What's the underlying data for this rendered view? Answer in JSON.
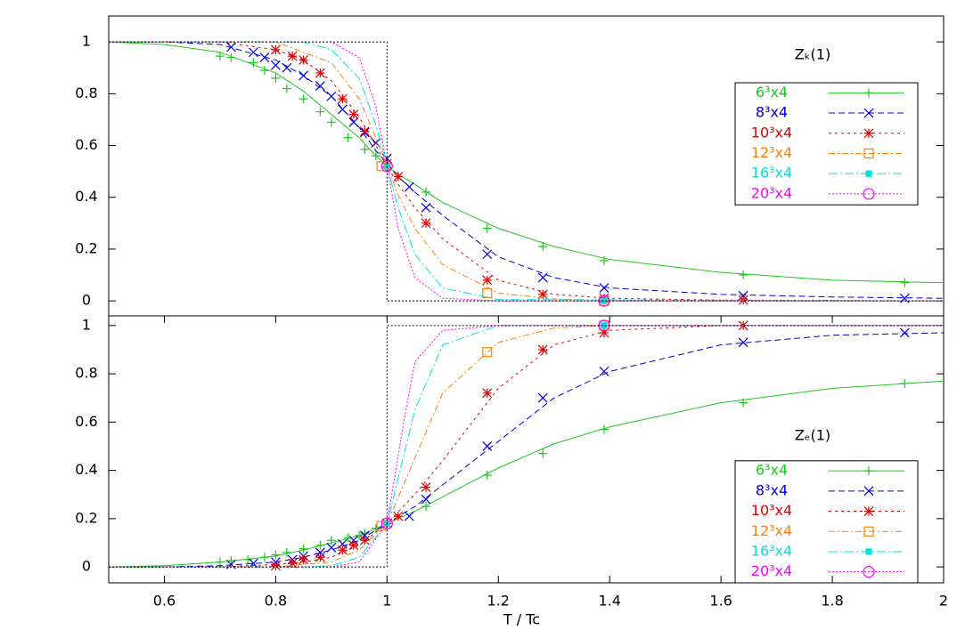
{
  "chart_data": [
    {
      "type": "line",
      "label": "Zₖ(1)",
      "xlim": [
        0.5,
        2.0
      ],
      "ylim": [
        -0.058,
        1.1
      ],
      "yticks": [
        0,
        0.2,
        0.4,
        0.6,
        0.8,
        1
      ],
      "legend": "upper right",
      "series": [
        {
          "name": "6³x4",
          "color": "#1ec81e",
          "dash": "solid",
          "marker": "plus",
          "x": [
            0.5,
            0.6,
            0.7,
            0.8,
            0.85,
            0.9,
            0.95,
            0.98,
            1.0,
            1.02,
            1.05,
            1.1,
            1.2,
            1.3,
            1.4,
            1.6,
            1.8,
            2.0
          ],
          "values": [
            1.0,
            0.99,
            0.96,
            0.88,
            0.81,
            0.72,
            0.63,
            0.56,
            0.52,
            0.49,
            0.45,
            0.38,
            0.28,
            0.21,
            0.16,
            0.11,
            0.08,
            0.07
          ],
          "points": {
            "x": [
              0.7,
              0.72,
              0.76,
              0.78,
              0.8,
              0.82,
              0.85,
              0.88,
              0.9,
              0.93,
              0.96,
              0.98,
              1.07,
              1.18,
              1.28,
              1.39,
              1.64,
              1.93
            ],
            "values": [
              0.945,
              0.94,
              0.92,
              0.89,
              0.86,
              0.82,
              0.78,
              0.73,
              0.69,
              0.63,
              0.585,
              0.56,
              0.42,
              0.28,
              0.21,
              0.155,
              0.1,
              0.07
            ]
          }
        },
        {
          "name": "8³x4",
          "color": "#0000e0",
          "dash": "dashed",
          "marker": "cross",
          "x": [
            0.5,
            0.6,
            0.7,
            0.8,
            0.85,
            0.9,
            0.95,
            0.98,
            1.0,
            1.02,
            1.05,
            1.1,
            1.2,
            1.3,
            1.4,
            1.6,
            1.8,
            2.0
          ],
          "values": [
            1.0,
            1.0,
            0.99,
            0.93,
            0.87,
            0.79,
            0.67,
            0.58,
            0.53,
            0.48,
            0.42,
            0.33,
            0.17,
            0.09,
            0.05,
            0.025,
            0.015,
            0.01
          ],
          "points": {
            "x": [
              0.72,
              0.76,
              0.78,
              0.8,
              0.82,
              0.85,
              0.88,
              0.9,
              0.92,
              0.94,
              0.96,
              0.98,
              1.0,
              1.04,
              1.07,
              1.18,
              1.28,
              1.39,
              1.64,
              1.93
            ],
            "values": [
              0.98,
              0.96,
              0.94,
              0.91,
              0.9,
              0.87,
              0.83,
              0.79,
              0.74,
              0.69,
              0.65,
              0.61,
              0.55,
              0.44,
              0.36,
              0.18,
              0.09,
              0.05,
              0.02,
              0.01
            ]
          }
        },
        {
          "name": "10³x4",
          "color": "#e00000",
          "dash": "short",
          "marker": "star",
          "x": [
            0.5,
            0.7,
            0.8,
            0.85,
            0.9,
            0.95,
            0.98,
            1.0,
            1.02,
            1.05,
            1.1,
            1.2,
            1.3,
            1.4,
            1.6,
            2.0
          ],
          "values": [
            1.0,
            1.0,
            0.97,
            0.93,
            0.85,
            0.71,
            0.6,
            0.52,
            0.45,
            0.36,
            0.24,
            0.08,
            0.025,
            0.01,
            0.003,
            0.0
          ],
          "points": {
            "x": [
              0.8,
              0.83,
              0.85,
              0.88,
              0.92,
              0.94,
              0.96,
              1.0,
              1.02,
              1.07,
              1.18,
              1.28,
              1.39,
              1.64
            ],
            "values": [
              0.97,
              0.945,
              0.93,
              0.88,
              0.78,
              0.72,
              0.655,
              0.53,
              0.48,
              0.3,
              0.08,
              0.025,
              0.01,
              0.003
            ]
          }
        },
        {
          "name": "12³x4",
          "color": "#ff8000",
          "dash": "dashdot",
          "marker": "square",
          "x": [
            0.5,
            0.8,
            0.9,
            0.95,
            0.98,
            1.0,
            1.02,
            1.05,
            1.1,
            1.2,
            1.3,
            1.4,
            2.0
          ],
          "values": [
            1.0,
            1.0,
            0.92,
            0.78,
            0.63,
            0.52,
            0.41,
            0.28,
            0.14,
            0.03,
            0.007,
            0.002,
            0.0
          ],
          "points": {
            "x": [
              0.99,
              1.18,
              1.39
            ],
            "values": [
              0.52,
              0.03,
              0.0
            ]
          }
        },
        {
          "name": "16³x4",
          "color": "#00e0e0",
          "dash": "longdashdot",
          "marker": "filledsquare",
          "x": [
            0.5,
            0.85,
            0.9,
            0.95,
            0.98,
            1.0,
            1.02,
            1.05,
            1.1,
            1.2,
            2.0
          ],
          "values": [
            1.0,
            1.0,
            0.97,
            0.86,
            0.68,
            0.52,
            0.36,
            0.18,
            0.05,
            0.005,
            0.0
          ],
          "points": {
            "x": [
              1.0,
              1.39
            ],
            "values": [
              0.52,
              0.0
            ]
          }
        },
        {
          "name": "20³x4",
          "color": "#ff00ff",
          "dash": "dotted",
          "marker": "circle",
          "x": [
            0.5,
            0.9,
            0.95,
            0.98,
            1.0,
            1.02,
            1.05,
            1.1,
            1.2,
            2.0
          ],
          "values": [
            1.0,
            1.0,
            0.94,
            0.75,
            0.52,
            0.28,
            0.09,
            0.01,
            0.0,
            0.0
          ],
          "points": {
            "x": [
              1.0,
              1.39
            ],
            "values": [
              0.52,
              0.0
            ]
          }
        },
        {
          "color": "#000000",
          "dash": "dotted",
          "x": [
            0.5,
            1.0,
            1.0,
            2.0
          ],
          "values": [
            1,
            1,
            0,
            0
          ]
        }
      ]
    },
    {
      "type": "line",
      "label": "Zₑ(1)",
      "xlabel": "T / Tc",
      "xlim": [
        0.5,
        2.0
      ],
      "ylim": [
        -0.066,
        1.04
      ],
      "xticks": [
        0.6,
        0.8,
        1,
        1.2,
        1.4,
        1.6,
        1.8,
        2
      ],
      "yticks": [
        0,
        0.2,
        0.4,
        0.6,
        0.8,
        1
      ],
      "legend": "lower right",
      "series": [
        {
          "name": "6³x4",
          "color": "#1ec81e",
          "dash": "solid",
          "marker": "plus",
          "x": [
            0.5,
            0.6,
            0.7,
            0.8,
            0.85,
            0.9,
            0.95,
            1.0,
            1.05,
            1.1,
            1.2,
            1.3,
            1.4,
            1.6,
            1.8,
            2.0
          ],
          "values": [
            0.0,
            0.005,
            0.02,
            0.045,
            0.07,
            0.1,
            0.13,
            0.18,
            0.23,
            0.29,
            0.41,
            0.51,
            0.58,
            0.68,
            0.74,
            0.77
          ],
          "points": {
            "x": [
              0.7,
              0.72,
              0.75,
              0.78,
              0.8,
              0.82,
              0.85,
              0.88,
              0.9,
              0.93,
              0.95,
              0.96,
              0.98,
              1.07,
              1.18,
              1.28,
              1.39,
              1.64,
              1.93
            ],
            "values": [
              0.02,
              0.025,
              0.03,
              0.04,
              0.05,
              0.06,
              0.075,
              0.09,
              0.11,
              0.12,
              0.13,
              0.14,
              0.16,
              0.25,
              0.38,
              0.47,
              0.57,
              0.68,
              0.76
            ]
          }
        },
        {
          "name": "8³x4",
          "color": "#0000e0",
          "dash": "dashed",
          "marker": "cross",
          "x": [
            0.5,
            0.6,
            0.7,
            0.8,
            0.85,
            0.9,
            0.95,
            1.0,
            1.05,
            1.1,
            1.2,
            1.3,
            1.4,
            1.6,
            1.8,
            2.0
          ],
          "values": [
            0.0,
            0.0,
            0.005,
            0.02,
            0.04,
            0.07,
            0.11,
            0.18,
            0.25,
            0.34,
            0.52,
            0.7,
            0.81,
            0.92,
            0.96,
            0.97
          ],
          "points": {
            "x": [
              0.72,
              0.76,
              0.8,
              0.83,
              0.85,
              0.88,
              0.9,
              0.92,
              0.94,
              0.96,
              1.0,
              1.04,
              1.07,
              1.18,
              1.28,
              1.39,
              1.64,
              1.93
            ],
            "values": [
              0.01,
              0.015,
              0.02,
              0.03,
              0.045,
              0.06,
              0.08,
              0.095,
              0.11,
              0.13,
              0.18,
              0.21,
              0.28,
              0.5,
              0.7,
              0.81,
              0.93,
              0.97
            ]
          }
        },
        {
          "name": "10³x4",
          "color": "#e00000",
          "dash": "short",
          "marker": "star",
          "x": [
            0.5,
            0.7,
            0.8,
            0.85,
            0.9,
            0.95,
            1.0,
            1.05,
            1.1,
            1.2,
            1.3,
            1.4,
            1.6,
            2.0
          ],
          "values": [
            0.0,
            0.0,
            0.01,
            0.02,
            0.04,
            0.09,
            0.18,
            0.3,
            0.44,
            0.74,
            0.92,
            0.98,
            1.0,
            1.0
          ],
          "points": {
            "x": [
              0.8,
              0.83,
              0.85,
              0.88,
              0.92,
              0.94,
              0.96,
              1.0,
              1.02,
              1.07,
              1.18,
              1.28,
              1.39,
              1.64
            ],
            "values": [
              0.005,
              0.015,
              0.03,
              0.04,
              0.07,
              0.09,
              0.11,
              0.18,
              0.21,
              0.33,
              0.72,
              0.9,
              0.97,
              1.0
            ]
          }
        },
        {
          "name": "12³x4",
          "color": "#ff8000",
          "dash": "dashdot",
          "marker": "square",
          "x": [
            0.5,
            0.8,
            0.9,
            0.95,
            1.0,
            1.05,
            1.1,
            1.2,
            1.3,
            1.4,
            2.0
          ],
          "values": [
            0.0,
            0.0,
            0.02,
            0.07,
            0.18,
            0.45,
            0.72,
            0.93,
            0.99,
            1.0,
            1.0
          ],
          "points": {
            "x": [
              0.99,
              1.18,
              1.39
            ],
            "values": [
              0.17,
              0.89,
              1.0
            ]
          }
        },
        {
          "name": "16³x4",
          "color": "#00e0e0",
          "dash": "longdashdot",
          "marker": "filledsquare",
          "x": [
            0.5,
            0.85,
            0.9,
            0.95,
            1.0,
            1.05,
            1.1,
            1.2,
            2.0
          ],
          "values": [
            0,
            0,
            0.005,
            0.04,
            0.18,
            0.65,
            0.92,
            1.0,
            1.0
          ],
          "points": {
            "x": [
              1.0,
              1.39
            ],
            "values": [
              0.18,
              1.0
            ]
          }
        },
        {
          "name": "20³x4",
          "color": "#ff00ff",
          "dash": "dotted",
          "marker": "circle",
          "x": [
            0.5,
            0.9,
            0.95,
            1.0,
            1.03,
            1.05,
            1.1,
            1.2,
            2.0
          ],
          "values": [
            0,
            0,
            0.02,
            0.18,
            0.6,
            0.85,
            0.98,
            1.0,
            1.0
          ],
          "points": {
            "x": [
              1.0,
              1.39
            ],
            "values": [
              0.18,
              1.0
            ]
          }
        },
        {
          "color": "#000000",
          "dash": "dotted",
          "x": [
            0.5,
            1.0,
            1.0,
            2.0
          ],
          "values": [
            0,
            0,
            1,
            1
          ]
        }
      ]
    }
  ]
}
